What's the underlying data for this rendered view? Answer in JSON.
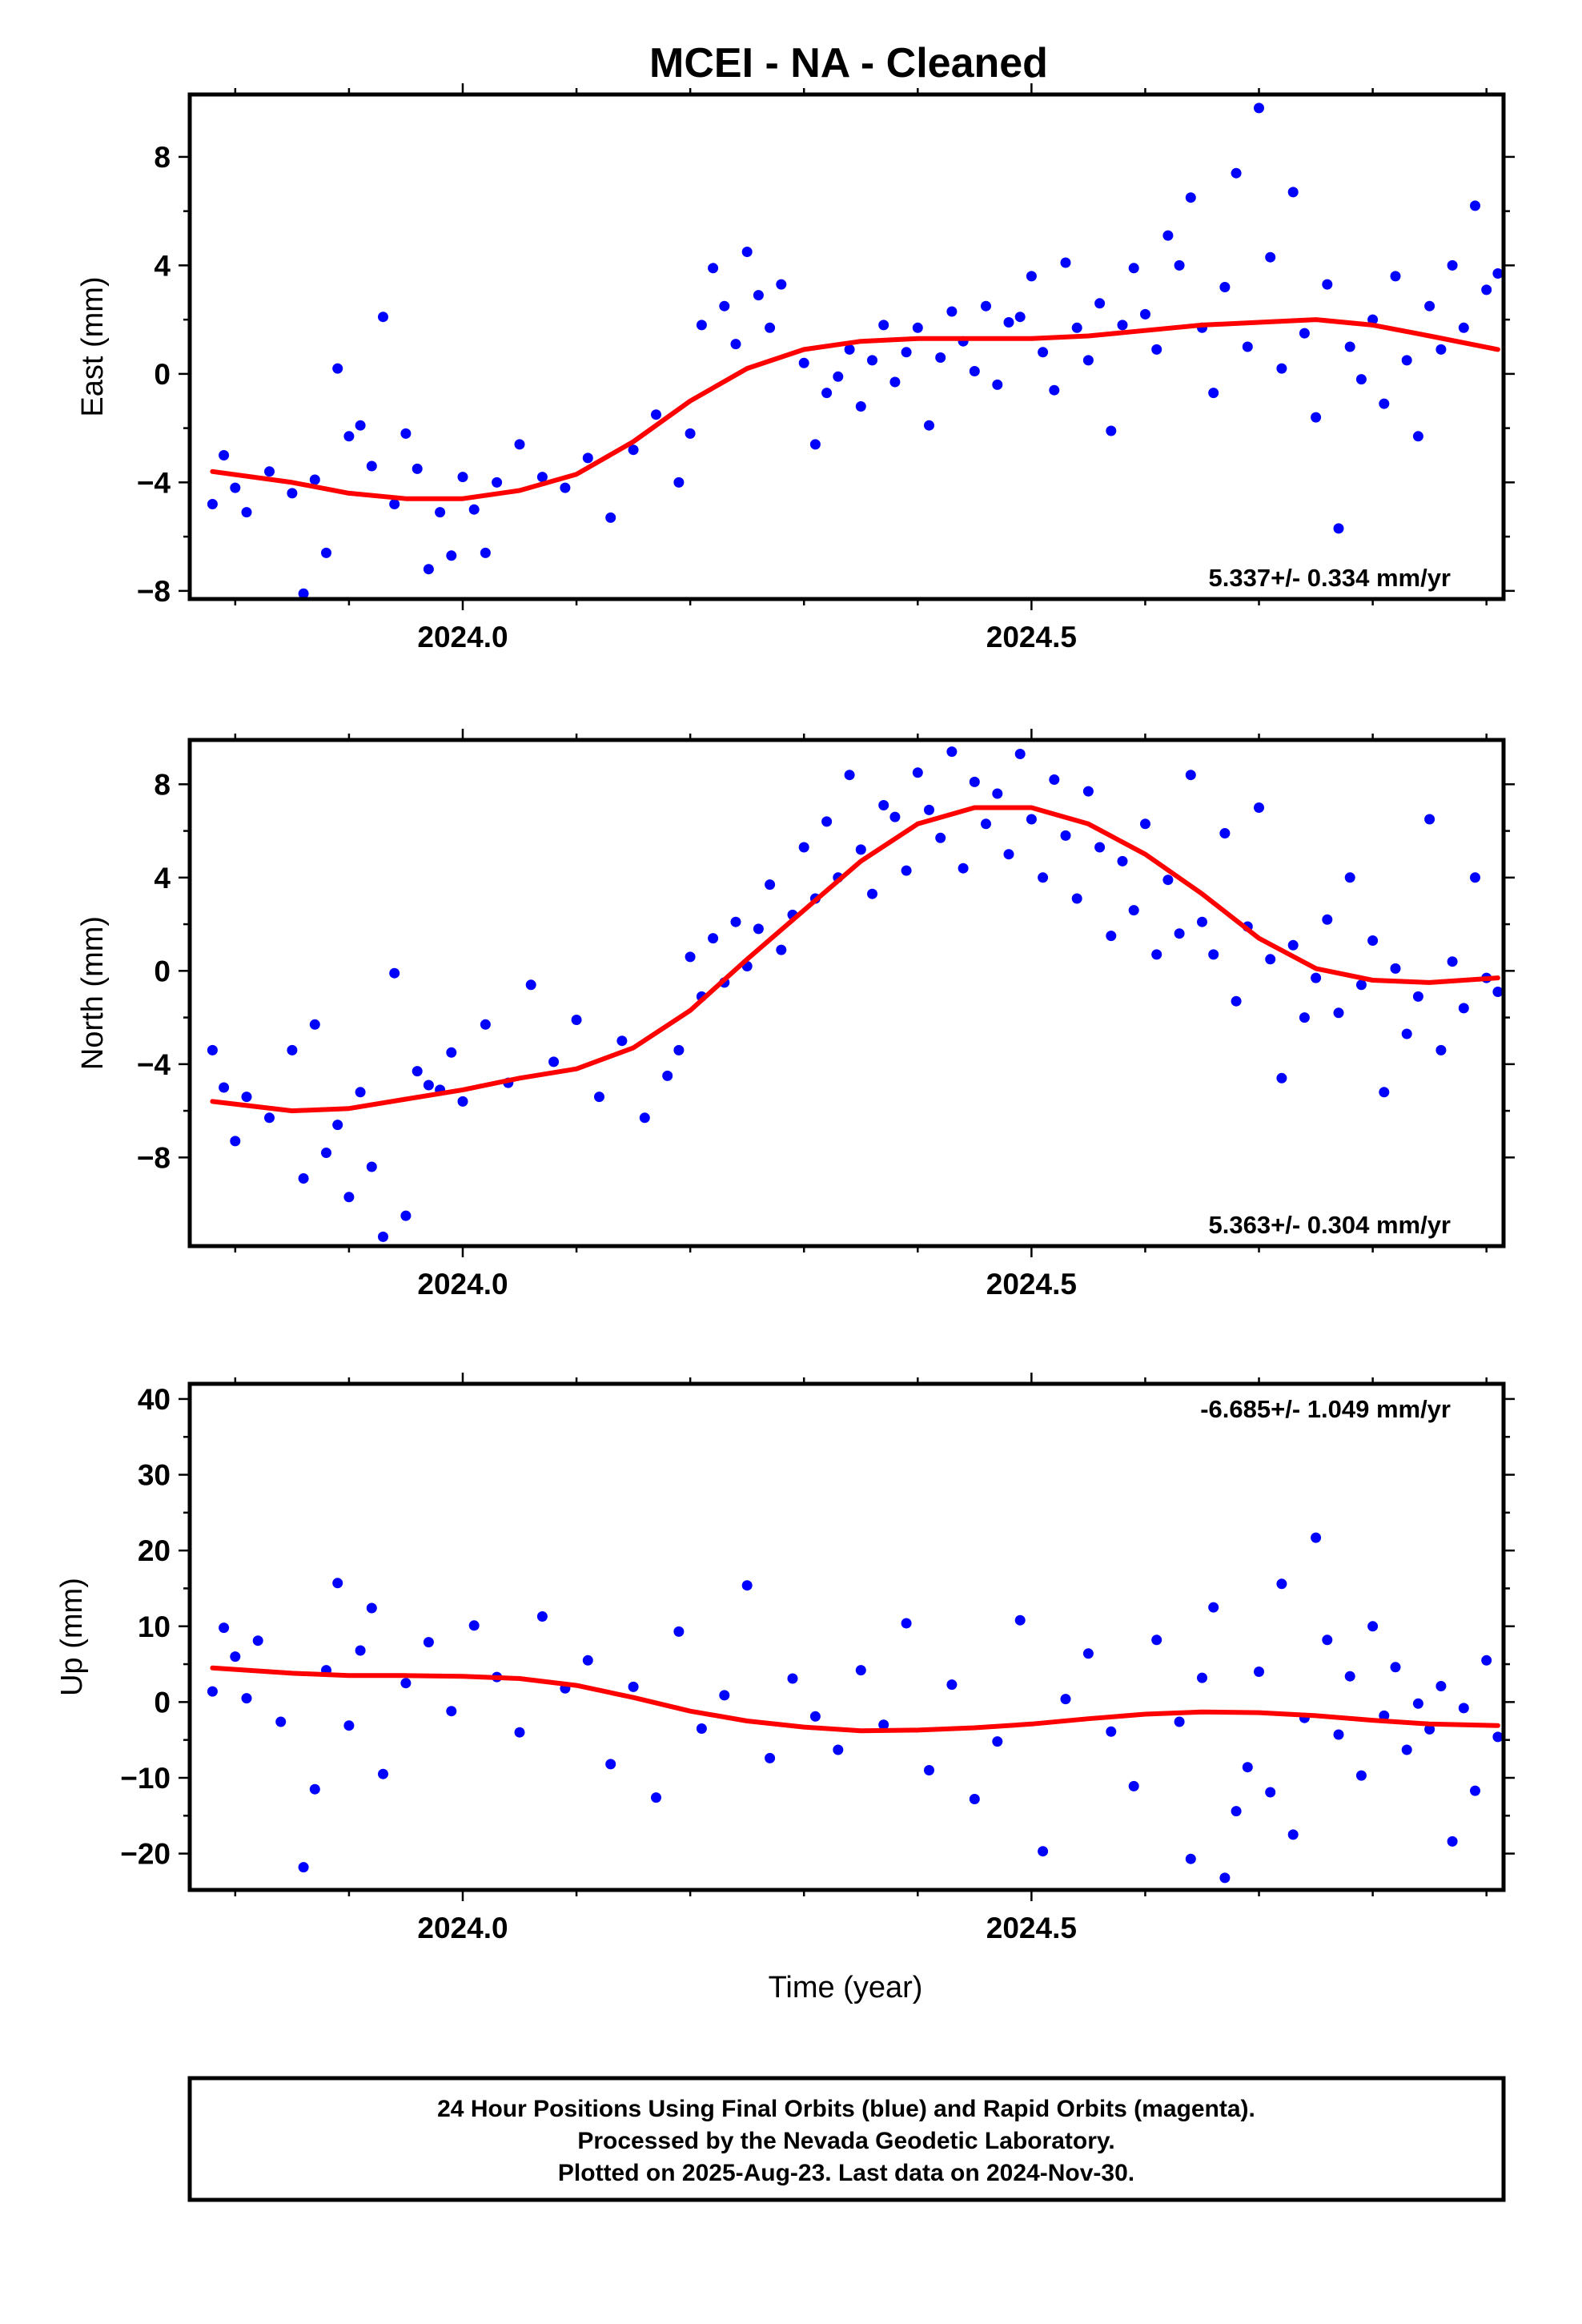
{
  "figure": {
    "title": "MCEI  - NA - Cleaned",
    "xlabel": "Time (year)",
    "footer": [
      "24 Hour Positions Using Final Orbits (blue) and Rapid Orbits (magenta).",
      "Processed by the Nevada Geodetic Laboratory.",
      "Plotted on 2025-Aug-23. Last data on 2024-Nov-30."
    ],
    "colors": {
      "points": "#0000ff",
      "fit": "#ff0000",
      "frame": "#000000"
    }
  },
  "chart_data": [
    {
      "type": "scatter",
      "title": "MCEI  - NA - Cleaned",
      "ylabel": "East (mm)",
      "xlabel": "",
      "rate_label": "5.337+/- 0.334 mm/yr",
      "rate_position": "bottom-right",
      "xlim": [
        2023.76,
        2024.915
      ],
      "ylim": [
        -8.3,
        10.3
      ],
      "xticks": [
        2024.0,
        2024.5
      ],
      "xtick_labels": [
        "2024.0",
        "2024.5"
      ],
      "yticks": [
        -8,
        -4,
        0,
        4,
        8
      ],
      "ytick_labels": [
        "−8",
        "−4",
        "0",
        "4",
        "8"
      ],
      "grid": false,
      "series": [
        {
          "x": [
            2023.78,
            2023.79,
            2023.8,
            2023.81,
            2023.83,
            2023.85,
            2023.86,
            2023.87,
            2023.88,
            2023.89,
            2023.9,
            2023.91,
            2023.92,
            2023.93,
            2023.94,
            2023.95,
            2023.96,
            2023.97,
            2023.98,
            2023.99,
            2024.0,
            2024.01,
            2024.02,
            2024.03,
            2024.05,
            2024.07,
            2024.09,
            2024.11,
            2024.13,
            2024.15,
            2024.17,
            2024.19,
            2024.2,
            2024.21,
            2024.22,
            2024.23,
            2024.24,
            2024.25,
            2024.26,
            2024.27,
            2024.28,
            2024.3,
            2024.31,
            2024.32,
            2024.33,
            2024.34,
            2024.35,
            2024.36,
            2024.37,
            2024.38,
            2024.39,
            2024.4,
            2024.41,
            2024.42,
            2024.43,
            2024.44,
            2024.45,
            2024.46,
            2024.47,
            2024.48,
            2024.49,
            2024.5,
            2024.51,
            2024.52,
            2024.53,
            2024.54,
            2024.55,
            2024.56,
            2024.57,
            2024.58,
            2024.59,
            2024.6,
            2024.61,
            2024.62,
            2024.63,
            2024.64,
            2024.65,
            2024.66,
            2024.67,
            2024.68,
            2024.69,
            2024.7,
            2024.71,
            2024.72,
            2024.73,
            2024.74,
            2024.75,
            2024.76,
            2024.77,
            2024.78,
            2024.79,
            2024.8,
            2024.81,
            2024.82,
            2024.83,
            2024.84,
            2024.85,
            2024.86,
            2024.87,
            2024.88,
            2024.89,
            2024.9,
            2024.91
          ],
          "y": [
            -4.8,
            -3.0,
            -4.2,
            -5.1,
            -3.6,
            -4.4,
            -8.1,
            -3.9,
            -6.6,
            0.2,
            -2.3,
            -1.9,
            -3.4,
            2.1,
            -4.8,
            -2.2,
            -3.5,
            -7.2,
            -5.1,
            -6.7,
            -3.8,
            -5.0,
            -6.6,
            -4.0,
            -2.6,
            -3.8,
            -4.2,
            -3.1,
            -5.3,
            -2.8,
            -1.5,
            -4.0,
            -2.2,
            1.8,
            3.9,
            2.5,
            1.1,
            4.5,
            2.9,
            1.7,
            3.3,
            0.4,
            -2.6,
            -0.7,
            -0.1,
            0.9,
            -1.2,
            0.5,
            1.8,
            -0.3,
            0.8,
            1.7,
            -1.9,
            0.6,
            2.3,
            1.2,
            0.1,
            2.5,
            -0.4,
            1.9,
            2.1,
            3.6,
            0.8,
            -0.6,
            4.1,
            1.7,
            0.5,
            2.6,
            -2.1,
            1.8,
            3.9,
            2.2,
            0.9,
            5.1,
            4.0,
            6.5,
            1.7,
            -0.7,
            3.2,
            7.4,
            1.0,
            9.8,
            4.3,
            0.2,
            6.7,
            1.5,
            -1.6,
            3.3,
            -5.7,
            1.0,
            -0.2,
            2.0,
            -1.1,
            3.6,
            0.5,
            -2.3,
            2.5,
            0.9,
            4.0,
            1.7,
            6.2,
            3.1,
            3.7
          ]
        },
        {
          "name": "fit",
          "x": [
            2023.78,
            2023.85,
            2023.9,
            2023.95,
            2024.0,
            2024.05,
            2024.1,
            2024.15,
            2024.2,
            2024.25,
            2024.3,
            2024.35,
            2024.4,
            2024.45,
            2024.5,
            2024.55,
            2024.6,
            2024.65,
            2024.7,
            2024.75,
            2024.8,
            2024.85,
            2024.91
          ],
          "y": [
            -3.6,
            -4.0,
            -4.4,
            -4.6,
            -4.6,
            -4.3,
            -3.7,
            -2.5,
            -1.0,
            0.2,
            0.9,
            1.2,
            1.3,
            1.3,
            1.3,
            1.4,
            1.6,
            1.8,
            1.9,
            2.0,
            1.8,
            1.4,
            0.9
          ]
        }
      ]
    },
    {
      "type": "scatter",
      "title": "",
      "ylabel": "North (mm)",
      "xlabel": "",
      "rate_label": "5.363+/- 0.304 mm/yr",
      "rate_position": "bottom-right",
      "xlim": [
        2023.76,
        2024.915
      ],
      "ylim": [
        -11.8,
        9.9
      ],
      "xticks": [
        2024.0,
        2024.5
      ],
      "xtick_labels": [
        "2024.0",
        "2024.5"
      ],
      "yticks": [
        -8,
        -4,
        0,
        4,
        8
      ],
      "ytick_labels": [
        "−8",
        "−4",
        "0",
        "4",
        "8"
      ],
      "grid": false,
      "series": [
        {
          "x": [
            2023.78,
            2023.79,
            2023.8,
            2023.81,
            2023.83,
            2023.85,
            2023.86,
            2023.87,
            2023.88,
            2023.89,
            2023.9,
            2023.91,
            2023.92,
            2023.93,
            2023.94,
            2023.95,
            2023.96,
            2023.97,
            2023.98,
            2023.99,
            2024.0,
            2024.02,
            2024.04,
            2024.06,
            2024.08,
            2024.1,
            2024.12,
            2024.14,
            2024.16,
            2024.18,
            2024.19,
            2024.2,
            2024.21,
            2024.22,
            2024.23,
            2024.24,
            2024.25,
            2024.26,
            2024.27,
            2024.28,
            2024.29,
            2024.3,
            2024.31,
            2024.32,
            2024.33,
            2024.34,
            2024.35,
            2024.36,
            2024.37,
            2024.38,
            2024.39,
            2024.4,
            2024.41,
            2024.42,
            2024.43,
            2024.44,
            2024.45,
            2024.46,
            2024.47,
            2024.48,
            2024.49,
            2024.5,
            2024.51,
            2024.52,
            2024.53,
            2024.54,
            2024.55,
            2024.56,
            2024.57,
            2024.58,
            2024.59,
            2024.6,
            2024.61,
            2024.62,
            2024.63,
            2024.64,
            2024.65,
            2024.66,
            2024.67,
            2024.68,
            2024.69,
            2024.7,
            2024.71,
            2024.72,
            2024.73,
            2024.74,
            2024.75,
            2024.76,
            2024.77,
            2024.78,
            2024.79,
            2024.8,
            2024.81,
            2024.82,
            2024.83,
            2024.84,
            2024.85,
            2024.86,
            2024.87,
            2024.88,
            2024.89,
            2024.9,
            2024.91
          ],
          "y": [
            -3.4,
            -5.0,
            -7.3,
            -5.4,
            -6.3,
            -3.4,
            -8.9,
            -2.3,
            -7.8,
            -6.6,
            -9.7,
            -5.2,
            -8.4,
            -11.4,
            -0.1,
            -10.5,
            -4.3,
            -4.9,
            -5.1,
            -3.5,
            -5.6,
            -2.3,
            -4.8,
            -0.6,
            -3.9,
            -2.1,
            -5.4,
            -3.0,
            -6.3,
            -4.5,
            -3.4,
            0.6,
            -1.1,
            1.4,
            -0.5,
            2.1,
            0.2,
            1.8,
            3.7,
            0.9,
            2.4,
            5.3,
            3.1,
            6.4,
            4.0,
            8.4,
            5.2,
            3.3,
            7.1,
            6.6,
            4.3,
            8.5,
            6.9,
            5.7,
            9.4,
            4.4,
            8.1,
            6.3,
            7.6,
            5.0,
            9.3,
            6.5,
            4.0,
            8.2,
            5.8,
            3.1,
            7.7,
            5.3,
            1.5,
            4.7,
            2.6,
            6.3,
            0.7,
            3.9,
            1.6,
            8.4,
            2.1,
            0.7,
            5.9,
            -1.3,
            1.9,
            7.0,
            0.5,
            -4.6,
            1.1,
            -2.0,
            -0.3,
            2.2,
            -1.8,
            4.0,
            -0.6,
            1.3,
            -5.2,
            0.1,
            -2.7,
            -1.1,
            6.5,
            -3.4,
            0.4,
            -1.6,
            4.0,
            -0.3,
            -0.9
          ]
        },
        {
          "name": "fit",
          "x": [
            2023.78,
            2023.85,
            2023.9,
            2023.95,
            2024.0,
            2024.05,
            2024.1,
            2024.15,
            2024.2,
            2024.25,
            2024.3,
            2024.35,
            2024.4,
            2024.45,
            2024.5,
            2024.55,
            2024.6,
            2024.65,
            2024.7,
            2024.75,
            2024.8,
            2024.85,
            2024.91
          ],
          "y": [
            -5.6,
            -6.0,
            -5.9,
            -5.5,
            -5.1,
            -4.6,
            -4.2,
            -3.3,
            -1.7,
            0.5,
            2.6,
            4.7,
            6.3,
            7.0,
            7.0,
            6.3,
            5.0,
            3.3,
            1.4,
            0.1,
            -0.4,
            -0.5,
            -0.3
          ]
        }
      ]
    },
    {
      "type": "scatter",
      "title": "",
      "ylabel": "Up (mm)",
      "xlabel": "Time (year)",
      "rate_label": "-6.685+/- 1.049 mm/yr",
      "rate_position": "top-right",
      "xlim": [
        2023.76,
        2024.915
      ],
      "ylim": [
        -24.8,
        42.0
      ],
      "xticks": [
        2024.0,
        2024.5
      ],
      "xtick_labels": [
        "2024.0",
        "2024.5"
      ],
      "yticks": [
        -20,
        -10,
        0,
        10,
        20,
        30,
        40
      ],
      "ytick_labels": [
        "−20",
        "−10",
        "0",
        "10",
        "20",
        "30",
        "40"
      ],
      "grid": false,
      "series": [
        {
          "x": [
            2023.78,
            2023.79,
            2023.8,
            2023.81,
            2023.82,
            2023.84,
            2023.86,
            2023.87,
            2023.88,
            2023.89,
            2023.9,
            2023.91,
            2023.92,
            2023.93,
            2023.95,
            2023.97,
            2023.99,
            2024.01,
            2024.03,
            2024.05,
            2024.07,
            2024.09,
            2024.11,
            2024.13,
            2024.15,
            2024.17,
            2024.19,
            2024.21,
            2024.23,
            2024.25,
            2024.27,
            2024.29,
            2024.31,
            2024.33,
            2024.35,
            2024.37,
            2024.39,
            2024.41,
            2024.43,
            2024.45,
            2024.47,
            2024.49,
            2024.51,
            2024.53,
            2024.55,
            2024.57,
            2024.59,
            2024.61,
            2024.63,
            2024.64,
            2024.65,
            2024.66,
            2024.67,
            2024.68,
            2024.69,
            2024.7,
            2024.71,
            2024.72,
            2024.73,
            2024.74,
            2024.75,
            2024.76,
            2024.77,
            2024.78,
            2024.79,
            2024.8,
            2024.81,
            2024.82,
            2024.83,
            2024.84,
            2024.85,
            2024.86,
            2024.87,
            2024.88,
            2024.89,
            2024.9,
            2024.91
          ],
          "y": [
            1.4,
            9.8,
            6.0,
            0.5,
            8.1,
            -2.6,
            -21.8,
            -11.5,
            4.2,
            15.7,
            -3.1,
            6.8,
            12.4,
            -9.5,
            2.5,
            7.9,
            -1.2,
            10.1,
            3.3,
            -4.0,
            11.3,
            1.8,
            5.5,
            -8.2,
            2.0,
            -12.6,
            9.3,
            -3.5,
            0.9,
            15.4,
            -7.4,
            3.1,
            -1.9,
            -6.3,
            4.2,
            -3.0,
            10.4,
            -9.0,
            2.3,
            -12.8,
            -5.2,
            10.8,
            -19.7,
            0.4,
            6.4,
            -3.9,
            -11.1,
            8.2,
            -2.6,
            -20.7,
            3.2,
            12.5,
            -23.2,
            -14.4,
            -8.6,
            4.0,
            -11.9,
            15.6,
            -17.5,
            -2.1,
            21.7,
            8.2,
            -4.3,
            3.4,
            -9.7,
            10.0,
            -1.8,
            4.6,
            -6.3,
            -0.2,
            -3.6,
            2.1,
            -18.4,
            -0.8,
            -11.7,
            5.5,
            -4.6
          ]
        },
        {
          "name": "fit",
          "x": [
            2023.78,
            2023.85,
            2023.9,
            2023.95,
            2024.0,
            2024.05,
            2024.1,
            2024.15,
            2024.2,
            2024.25,
            2024.3,
            2024.35,
            2024.4,
            2024.45,
            2024.5,
            2024.55,
            2024.6,
            2024.65,
            2024.7,
            2024.75,
            2024.8,
            2024.85,
            2024.91
          ],
          "y": [
            4.5,
            3.8,
            3.5,
            3.5,
            3.4,
            3.1,
            2.2,
            0.6,
            -1.2,
            -2.5,
            -3.3,
            -3.8,
            -3.7,
            -3.4,
            -2.9,
            -2.2,
            -1.6,
            -1.3,
            -1.4,
            -1.8,
            -2.4,
            -2.9,
            -3.1
          ]
        }
      ]
    }
  ]
}
